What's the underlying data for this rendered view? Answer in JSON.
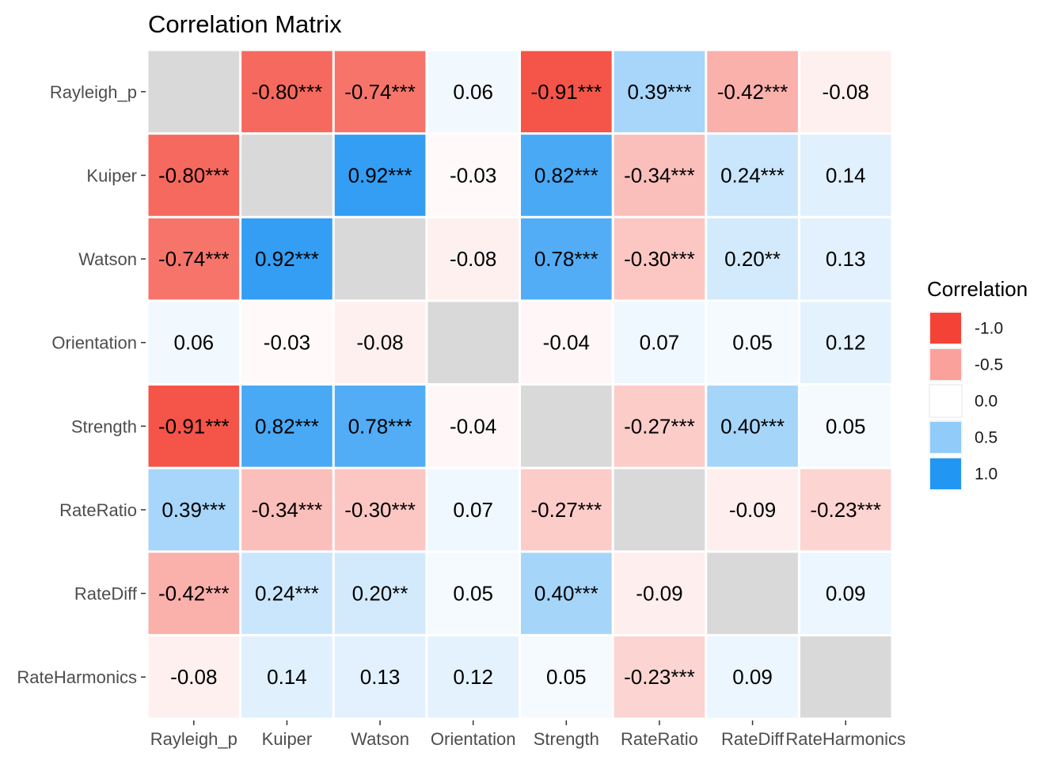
{
  "chart_data": {
    "type": "heatmap",
    "title": "Correlation Matrix",
    "xlabel": "",
    "ylabel": "",
    "variables": [
      "Rayleigh_p",
      "Kuiper",
      "Watson",
      "Orientation",
      "Strength",
      "RateRatio",
      "RateDiff",
      "RateHarmonics"
    ],
    "labels": [
      [
        "",
        "-0.80***",
        "-0.74***",
        "0.06",
        "-0.91***",
        "0.39***",
        "-0.42***",
        "-0.08"
      ],
      [
        "-0.80***",
        "",
        "0.92***",
        "-0.03",
        "0.82***",
        "-0.34***",
        "0.24***",
        "0.14"
      ],
      [
        "-0.74***",
        "0.92***",
        "",
        "-0.08",
        "0.78***",
        "-0.30***",
        "0.20**",
        "0.13"
      ],
      [
        "0.06",
        "-0.03",
        "-0.08",
        "",
        "-0.04",
        "0.07",
        "0.05",
        "0.12"
      ],
      [
        "-0.91***",
        "0.82***",
        "0.78***",
        "-0.04",
        "",
        "-0.27***",
        "0.40***",
        "0.05"
      ],
      [
        "0.39***",
        "-0.34***",
        "-0.30***",
        "0.07",
        "-0.27***",
        "",
        "-0.09",
        "-0.23***"
      ],
      [
        "-0.42***",
        "0.24***",
        "0.20**",
        "0.05",
        "0.40***",
        "-0.09",
        "",
        "0.09"
      ],
      [
        "-0.08",
        "0.14",
        "0.13",
        "0.12",
        "0.05",
        "-0.23***",
        "0.09",
        ""
      ]
    ],
    "values": [
      [
        null,
        -0.8,
        -0.74,
        0.06,
        -0.91,
        0.39,
        -0.42,
        -0.08
      ],
      [
        -0.8,
        null,
        0.92,
        -0.03,
        0.82,
        -0.34,
        0.24,
        0.14
      ],
      [
        -0.74,
        0.92,
        null,
        -0.08,
        0.78,
        -0.3,
        0.2,
        0.13
      ],
      [
        0.06,
        -0.03,
        -0.08,
        null,
        -0.04,
        0.07,
        0.05,
        0.12
      ],
      [
        -0.91,
        0.82,
        0.78,
        -0.04,
        null,
        -0.27,
        0.4,
        0.05
      ],
      [
        0.39,
        -0.34,
        -0.3,
        0.07,
        -0.27,
        null,
        -0.09,
        -0.23
      ],
      [
        -0.42,
        0.24,
        0.2,
        0.05,
        0.4,
        -0.09,
        null,
        0.09
      ],
      [
        -0.08,
        0.14,
        0.13,
        0.12,
        0.05,
        -0.23,
        0.09,
        null
      ]
    ],
    "color_scale": {
      "low": "#F44336",
      "mid": "#FFFFFF",
      "high": "#2196F3",
      "na": "#D9D9D9",
      "limits": [
        -1,
        1
      ]
    },
    "legend": {
      "title": "Correlation",
      "placement": "right",
      "breaks": [
        -1.0,
        -0.5,
        0.0,
        0.5,
        1.0
      ],
      "labels": [
        "-1.0",
        "-0.5",
        "0.0",
        "0.5",
        "1.0"
      ]
    }
  }
}
